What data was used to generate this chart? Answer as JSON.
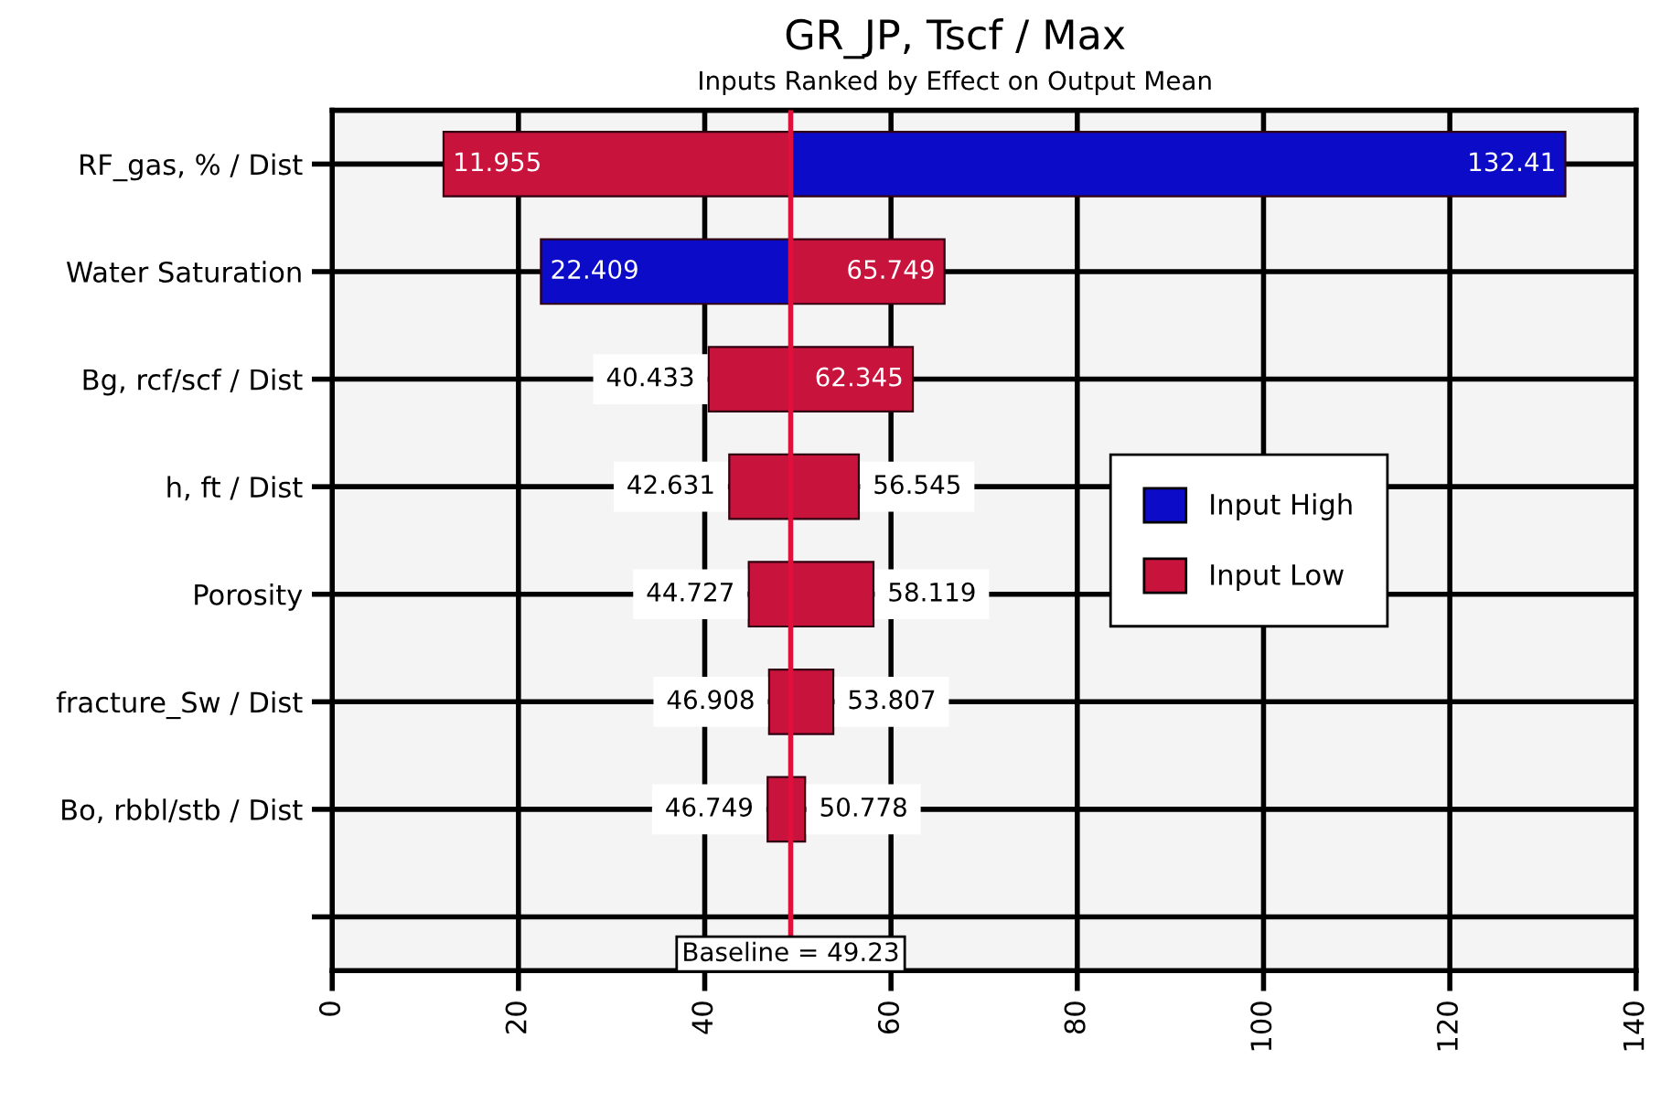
{
  "chart_data": {
    "type": "bar",
    "orientation": "horizontal",
    "title": "GR_JP, Tscf / Max",
    "subtitle": "Inputs Ranked by Effect on Output Mean",
    "categories": [
      "RF_gas, % / Dist",
      "Water Saturation",
      "Bg, rcf/scf / Dist",
      "h, ft / Dist",
      "Porosity",
      "fracture_Sw / Dist",
      "Bo, rbbl/stb / Dist",
      null
    ],
    "series": [
      {
        "name": "Input High",
        "color": "#0c0cc8",
        "base": [
          49.23,
          49.23,
          null,
          null,
          null,
          null,
          null,
          null
        ],
        "values": [
          83.18,
          -26.821,
          null,
          null,
          null,
          null,
          null,
          null
        ],
        "value_labels": [
          "132.41",
          "22.409",
          null,
          null,
          null,
          null,
          null,
          null
        ]
      },
      {
        "name": "Input Low",
        "color": "#c8143c",
        "base": [
          49.23,
          49.23,
          49.23,
          49.23,
          49.23,
          49.23,
          49.23,
          null
        ],
        "values": [
          -37.275,
          16.519,
          -8.797,
          -6.599,
          -4.503,
          -2.322,
          -2.481,
          null
        ],
        "value_labels": [
          "11.955",
          "65.749",
          "40.433",
          "42.631",
          "44.727",
          "46.908",
          "46.749",
          null
        ]
      },
      {
        "color": "#c8143c",
        "base": [
          null,
          null,
          49.23,
          49.23,
          49.23,
          49.23,
          49.23,
          null
        ],
        "values": [
          null,
          null,
          13.115,
          7.315,
          8.889,
          4.577,
          1.548,
          null
        ],
        "value_labels": [
          null,
          null,
          "62.345",
          "56.545",
          "58.119",
          "53.807",
          "50.778",
          null
        ]
      }
    ],
    "xlim": [
      0,
      140
    ],
    "xticks": [
      0,
      20,
      40,
      60,
      80,
      100,
      120,
      140
    ],
    "ref_lines": [
      {
        "axis": "x",
        "value": 49.23,
        "label": "Baseline = 49.23",
        "color": "#e0103c"
      }
    ],
    "grid": true,
    "legend": "right"
  }
}
